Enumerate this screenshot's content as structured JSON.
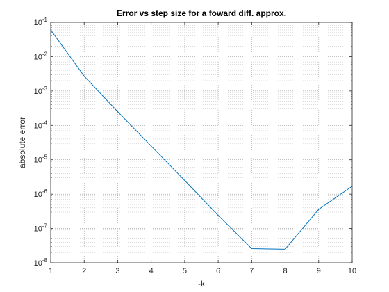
{
  "chart_data": {
    "type": "line",
    "title": "Error vs step size for a foward diff. approx.",
    "xlabel": "-k",
    "ylabel": "absolute error",
    "x": [
      1,
      2,
      3,
      4,
      5,
      6,
      7,
      8,
      9,
      10
    ],
    "series": [
      {
        "name": "",
        "color": "#0072bd",
        "values": [
          0.06,
          0.0027,
          0.00025,
          2.5e-05,
          2.5e-06,
          2.4e-07,
          2.6e-08,
          2.5e-08,
          3.6e-07,
          1.7e-06
        ]
      }
    ],
    "xlim": [
      1,
      10
    ],
    "ylim": [
      1e-08,
      0.1
    ],
    "yscale": "log",
    "xticks": [
      "1",
      "2",
      "3",
      "4",
      "5",
      "6",
      "7",
      "8",
      "9",
      "10"
    ],
    "yticks": [
      {
        "base": "10",
        "exp": "-8"
      },
      {
        "base": "10",
        "exp": "-7"
      },
      {
        "base": "10",
        "exp": "-6"
      },
      {
        "base": "10",
        "exp": "-5"
      },
      {
        "base": "10",
        "exp": "-4"
      },
      {
        "base": "10",
        "exp": "-3"
      },
      {
        "base": "10",
        "exp": "-2"
      },
      {
        "base": "10",
        "exp": "-1"
      }
    ],
    "grid": true,
    "minor_grid": true
  }
}
